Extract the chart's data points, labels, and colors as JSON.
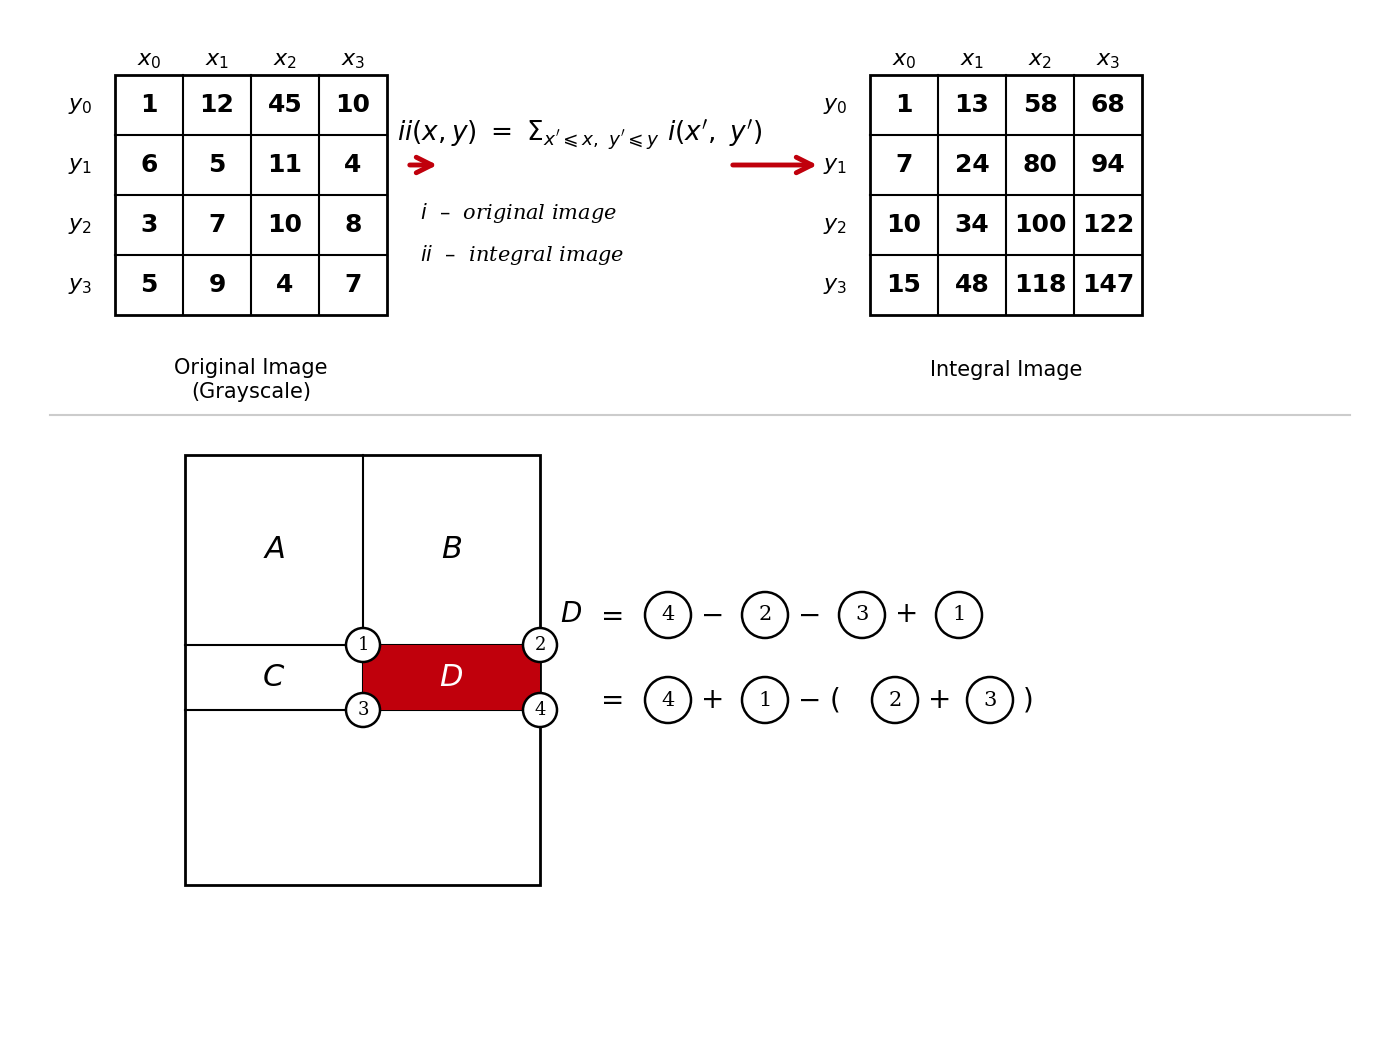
{
  "orig_data": [
    [
      1,
      12,
      45,
      10
    ],
    [
      6,
      5,
      11,
      4
    ],
    [
      3,
      7,
      10,
      8
    ],
    [
      5,
      9,
      4,
      7
    ]
  ],
  "integral_data": [
    [
      1,
      13,
      58,
      68
    ],
    [
      7,
      24,
      80,
      94
    ],
    [
      10,
      34,
      100,
      122
    ],
    [
      15,
      48,
      118,
      147
    ]
  ],
  "col_labels": [
    "$x_0$",
    "$x_1$",
    "$x_2$",
    "$x_3$"
  ],
  "row_labels": [
    "$y_0$",
    "$y_1$",
    "$y_2$",
    "$y_3$"
  ],
  "orig_caption": "Original Image\n(Grayscale)",
  "integral_caption": "Integral Image",
  "red_color": "#C0000C",
  "black": "#000000",
  "white": "#FFFFFF",
  "bg_color": "#FFFFFF",
  "separator_color": "#CCCCCC"
}
